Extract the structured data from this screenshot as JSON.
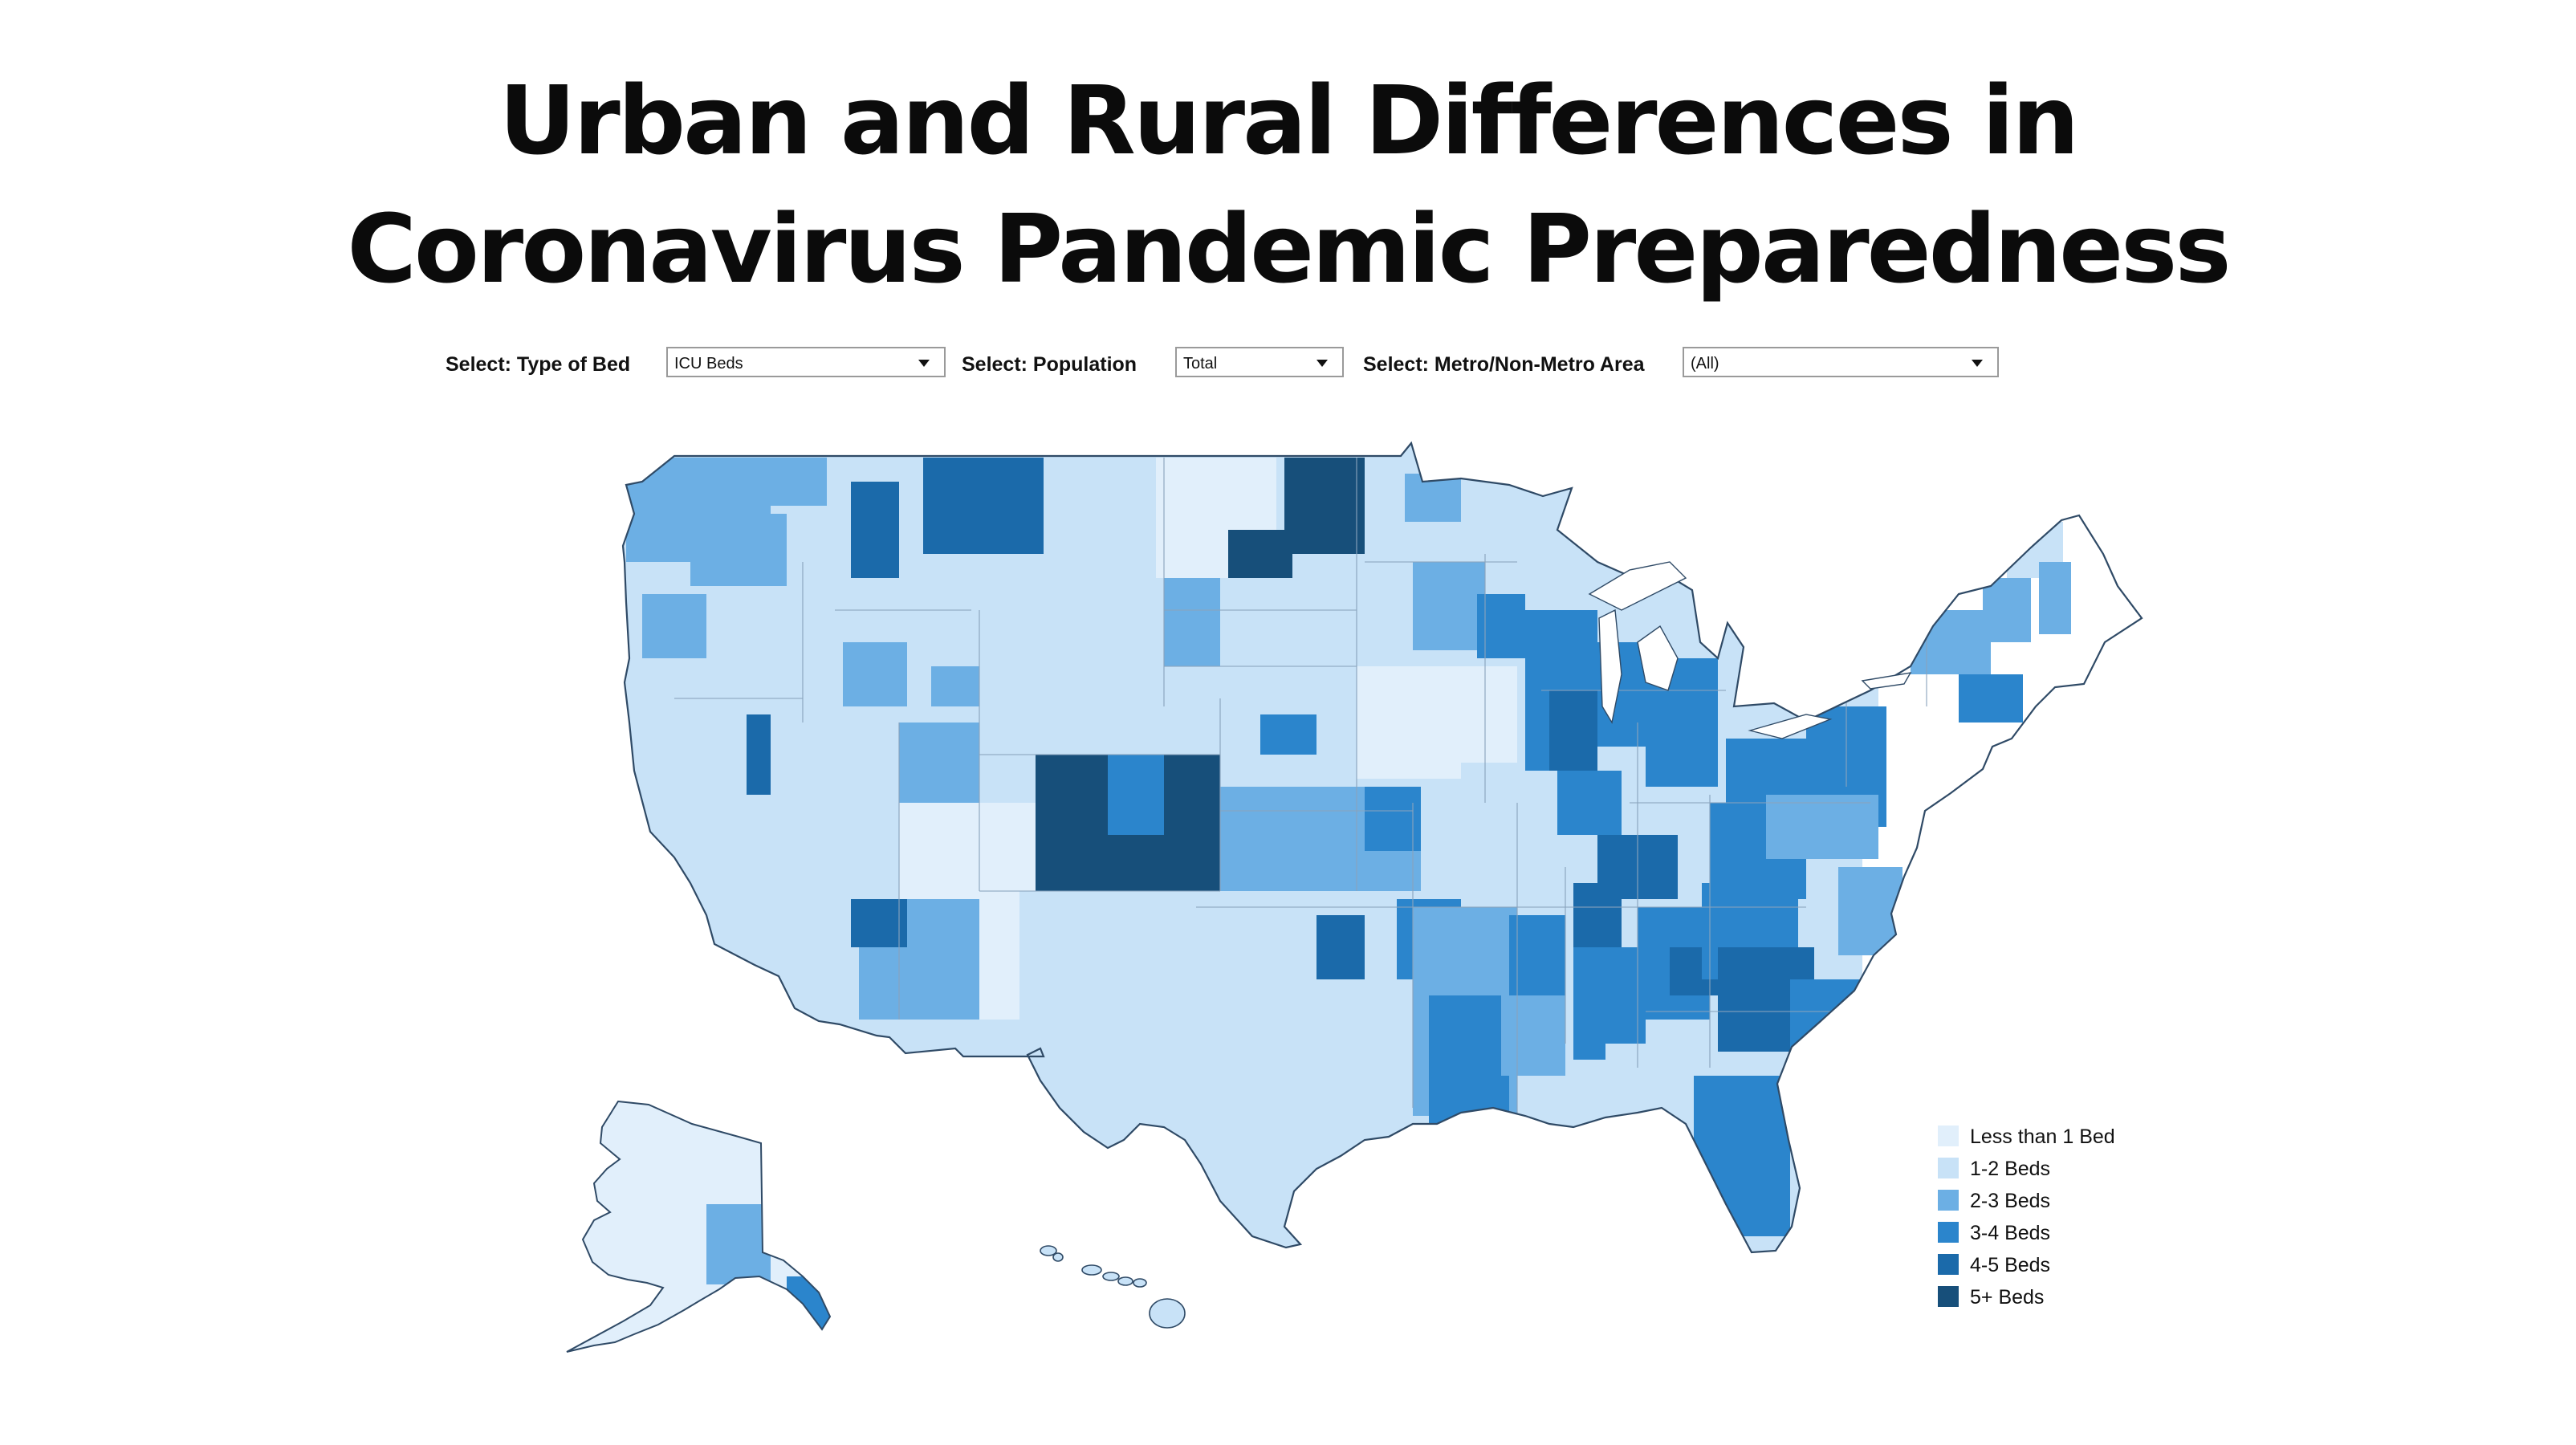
{
  "page": {
    "title_line1": "Urban and Rural Differences in",
    "title_line2": "Coronavirus Pandemic Preparedness"
  },
  "controls": {
    "bed_type": {
      "label": "Select: Type of Bed",
      "value": "ICU Beds"
    },
    "population": {
      "label": "Select: Population",
      "value": "Total"
    },
    "metro_area": {
      "label": "Select: Metro/Non-Metro Area",
      "value": "(All)"
    }
  },
  "legend": {
    "items": [
      {
        "label": "Less than 1 Bed",
        "color": "#e1effb"
      },
      {
        "label": "1-2 Beds",
        "color": "#c8e2f7"
      },
      {
        "label": "2-3 Beds",
        "color": "#6cafe4"
      },
      {
        "label": "3-4 Beds",
        "color": "#2b85cc"
      },
      {
        "label": "4-5 Beds",
        "color": "#1b6aaa"
      },
      {
        "label": "5+ Beds",
        "color": "#174f7a"
      }
    ]
  },
  "map": {
    "border_color": "#8aa4bd",
    "coast_color": "#2f4a66",
    "icons": [
      "us-map",
      "alaska-map",
      "hawaii-map"
    ]
  }
}
